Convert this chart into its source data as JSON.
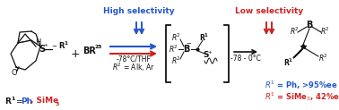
{
  "high_selectivity_label": "High selectivity",
  "low_selectivity_label": "Low selectivity",
  "conditions1": "-78°C/THF",
  "conditions2": "-78 - 0°C",
  "blue_color": "#2255CC",
  "red_color": "#CC2222",
  "black_color": "#111111",
  "bg_color": "#FFFFFF",
  "figwidth": 3.78,
  "figheight": 1.23,
  "dpi": 100
}
